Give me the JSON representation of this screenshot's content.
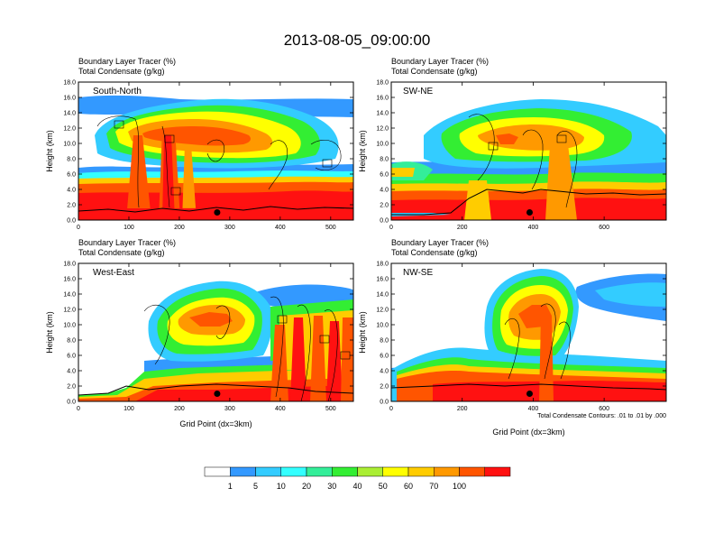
{
  "title": "2013-08-05_09:00:00",
  "colorbar": {
    "labels": [
      "1",
      "5",
      "10",
      "20",
      "30",
      "40",
      "50",
      "60",
      "70",
      "100"
    ],
    "colors": [
      "#ffffff",
      "#3399ff",
      "#33ccff",
      "#33ffff",
      "#33ee99",
      "#33ee33",
      "#aaee33",
      "#ffff00",
      "#ffcc00",
      "#ff9900",
      "#ff5500",
      "#ff1111"
    ]
  },
  "chart_data": [
    {
      "type": "contour",
      "label": "South-North",
      "title_lines": [
        "Boundary Layer Tracer   (%)",
        "Total Condensate   (g/kg)"
      ],
      "ylabel": "Height (km)",
      "xlabel": "",
      "xlim": [
        0,
        545
      ],
      "ylim": [
        0,
        18
      ],
      "xticks": [
        0,
        100,
        200,
        300,
        400,
        500
      ],
      "yticks": [
        "0.0",
        "2.0",
        "4.0",
        "6.0",
        "8.0",
        "10.0",
        "12.0",
        "14.0",
        "16.0",
        "18.0"
      ],
      "marker": {
        "x": 275,
        "y": 1.0
      },
      "note": ""
    },
    {
      "type": "contour",
      "label": "SW-NE",
      "title_lines": [
        "Boundary Layer Tracer   (%)",
        "Total Condensate   (g/kg)"
      ],
      "ylabel": "Height (km)",
      "xlabel": "",
      "xlim": [
        0,
        775
      ],
      "ylim": [
        0,
        18
      ],
      "xticks": [
        0,
        200,
        400,
        600
      ],
      "yticks": [
        "0.0",
        "2.0",
        "4.0",
        "6.0",
        "8.0",
        "10.0",
        "12.0",
        "14.0",
        "16.0",
        "18.0"
      ],
      "marker": {
        "x": 390,
        "y": 1.0
      },
      "note": ""
    },
    {
      "type": "contour",
      "label": "West-East",
      "title_lines": [
        "Boundary Layer Tracer   (%)",
        "Total Condensate   (g/kg)"
      ],
      "ylabel": "Height (km)",
      "xlabel": "Grid Point (dx=3km)",
      "xlim": [
        0,
        545
      ],
      "ylim": [
        0,
        18
      ],
      "xticks": [
        0,
        100,
        200,
        300,
        400,
        500
      ],
      "yticks": [
        "0.0",
        "2.0",
        "4.0",
        "6.0",
        "8.0",
        "10.0",
        "12.0",
        "14.0",
        "16.0",
        "18.0"
      ],
      "marker": {
        "x": 275,
        "y": 1.0
      },
      "note": ""
    },
    {
      "type": "contour",
      "label": "NW-SE",
      "title_lines": [
        "Boundary Layer Tracer   (%)",
        "Total Condensate   (g/kg)"
      ],
      "ylabel": "Height (km)",
      "xlabel": "Grid Point (dx=3km)",
      "xlim": [
        0,
        775
      ],
      "ylim": [
        0,
        18
      ],
      "xticks": [
        0,
        200,
        400,
        600
      ],
      "yticks": [
        "0.0",
        "2.0",
        "4.0",
        "6.0",
        "8.0",
        "10.0",
        "12.0",
        "14.0",
        "16.0",
        "18.0"
      ],
      "marker": {
        "x": 390,
        "y": 1.0
      },
      "note": "Total Condensate Contours: .01 to .01 by .000"
    }
  ]
}
